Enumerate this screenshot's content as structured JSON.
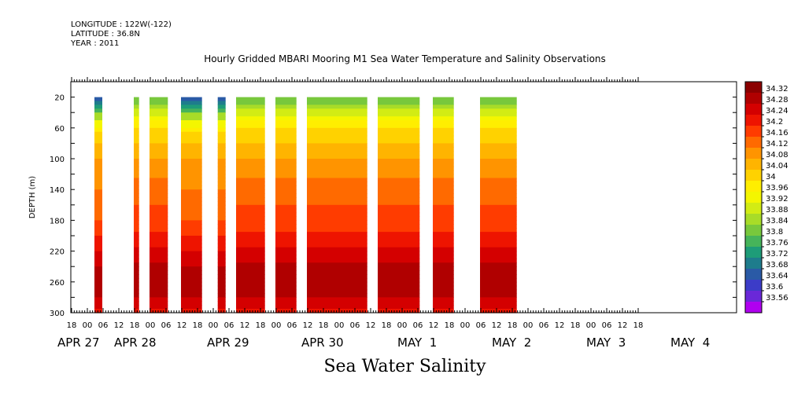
{
  "meta": {
    "longitude": "LONGITUDE : 122W(-122)",
    "latitude": "LATITUDE : 36.8N",
    "year": "YEAR : 2011"
  },
  "chart_data": {
    "type": "heatmap",
    "title": "Hourly Gridded MBARI Mooring M1 Sea Water Temperature and Salinity Observations",
    "bottom_label": "Sea Water Salinity",
    "ylabel": "DEPTH (m)",
    "y_ticks": [
      20,
      60,
      100,
      140,
      180,
      220,
      260,
      300
    ],
    "ylim": [
      300,
      0
    ],
    "x_hour_ticks": [
      "18",
      "00",
      "06",
      "12",
      "18",
      "00",
      "06",
      "12",
      "18",
      "00",
      "06",
      "12",
      "18",
      "00",
      "06",
      "12",
      "18",
      "00",
      "06",
      "12",
      "18",
      "00",
      "06",
      "12",
      "18",
      "00",
      "06",
      "12",
      "18",
      "00",
      "06",
      "12",
      "18",
      "00",
      "06",
      "12",
      "18"
    ],
    "x_date_labels": [
      "APR 27",
      "APR 28",
      "APR 29",
      "APR 30",
      "MAY  1",
      "MAY  2",
      "MAY  3",
      "MAY  4"
    ],
    "colorbar_labels": [
      "34.32",
      "34.28",
      "34.24",
      "34.2",
      "34.16",
      "34.12",
      "34.08",
      "34.04",
      "34",
      "33.96",
      "33.92",
      "33.88",
      "33.84",
      "33.8",
      "33.76",
      "33.72",
      "33.68",
      "33.64",
      "33.6",
      "33.56"
    ],
    "colorbar_colors": [
      "#8b0000",
      "#b00000",
      "#d40000",
      "#ee1400",
      "#ff3c00",
      "#ff6a00",
      "#ff9400",
      "#ffb400",
      "#ffd200",
      "#ffee00",
      "#f4f600",
      "#d2ec14",
      "#a8dc28",
      "#78c83c",
      "#46b45a",
      "#1e9c78",
      "#1e7c8c",
      "#2a5aa6",
      "#3c3cc8",
      "#6a28d8",
      "#b000f0"
    ],
    "levels_depth": [
      20,
      40,
      60,
      80,
      100,
      120,
      140,
      160,
      180,
      200,
      220,
      240,
      260,
      280,
      300
    ],
    "profiles": {
      "top_heavy": [
        33.8,
        33.9,
        34.0,
        34.04,
        34.08,
        34.11,
        34.14,
        34.16,
        34.18,
        34.21,
        34.25,
        34.29,
        34.31,
        34.28,
        34.22
      ],
      "fresh_top": [
        33.62,
        33.82,
        33.98,
        34.04,
        34.08,
        34.1,
        34.12,
        34.14,
        34.16,
        34.2,
        34.24,
        34.28,
        34.3,
        34.28,
        34.22
      ]
    },
    "segments": [
      {
        "start": "Apr 27 03:00",
        "end": "Apr 27 06:00",
        "profile": "fresh_top"
      },
      {
        "start": "Apr 27 18:00",
        "end": "Apr 27 20:00",
        "profile": "top_heavy"
      },
      {
        "start": "Apr 28 00:00",
        "end": "Apr 28 07:00",
        "profile": "top_heavy"
      },
      {
        "start": "Apr 28 12:00",
        "end": "Apr 28 20:00",
        "profile": "fresh_top"
      },
      {
        "start": "Apr 29 02:00",
        "end": "Apr 29 05:00",
        "profile": "fresh_top"
      },
      {
        "start": "Apr 29 09:00",
        "end": "Apr 29 20:00",
        "profile": "top_heavy"
      },
      {
        "start": "Apr 30 00:00",
        "end": "Apr 30 08:00",
        "profile": "top_heavy"
      },
      {
        "start": "Apr 30 12:00",
        "end": "May 1 11:00",
        "profile": "top_heavy"
      },
      {
        "start": "May 1 15:00",
        "end": "May 2 07:00",
        "profile": "top_heavy"
      },
      {
        "start": "May 2 12:00",
        "end": "May 2 20:00",
        "profile": "top_heavy"
      },
      {
        "start": "May 3 06:00",
        "end": "May 3 20:00",
        "profile": "top_heavy"
      }
    ]
  }
}
